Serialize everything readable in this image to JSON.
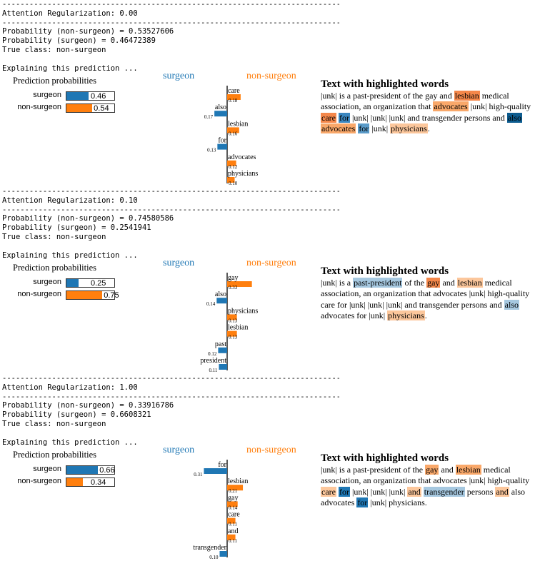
{
  "colors": {
    "surgeon": "#1f77b4",
    "non_surgeon": "#ff7f0e",
    "surgeon_dark": "#0d5c8f",
    "orange_light": "#fcc79c",
    "orange_mid": "#f9a86a",
    "blue_light": "#a6c8e0",
    "blue_mid": "#5a9bc9"
  },
  "sections": [
    {
      "reg_line": "Attention Regularization: 0.00",
      "prob_non": "Probability (non-surgeon) = 0.53527606",
      "prob_sur": "Probability (surgeon) = 0.46472389",
      "true_class": "True class: non-surgeon",
      "explaining": "Explaining this prediction ...",
      "pp_title": "Prediction probabilities",
      "pp": [
        {
          "label": "surgeon",
          "value": 0.46,
          "text": "0.46",
          "color": "#1f77b4"
        },
        {
          "label": "non-surgeon",
          "value": 0.54,
          "text": "0.54",
          "color": "#ff7f0e"
        }
      ],
      "neg_header": "surgeon",
      "pos_header": "non-surgeon",
      "text_title": "Text with highlighted words",
      "tokens": [
        {
          "t": "|unk| is a past-president of the gay and "
        },
        {
          "t": "lesbian",
          "bg": "#f4874a"
        },
        {
          "t": " medical association, an organization that "
        },
        {
          "t": "advocates",
          "bg": "#f9a86a"
        },
        {
          "t": " |unk| high-quality "
        },
        {
          "t": "care",
          "bg": "#f4874a"
        },
        {
          "t": " "
        },
        {
          "t": "for",
          "bg": "#3a86bf"
        },
        {
          "t": " |unk| |unk| |unk| and transgender persons and "
        },
        {
          "t": "also",
          "bg": "#0d5c8f",
          "fg": "#000"
        },
        {
          "t": " "
        },
        {
          "t": "advocates",
          "bg": "#f9a86a"
        },
        {
          "t": " "
        },
        {
          "t": "for",
          "bg": "#5a9bc9"
        },
        {
          "t": " |unk| "
        },
        {
          "t": "physicians",
          "bg": "#fcc79c"
        },
        {
          "t": "."
        }
      ]
    },
    {
      "reg_line": "Attention Regularization: 0.10",
      "prob_non": "Probability (non-surgeon) = 0.74580586",
      "prob_sur": "Probability (surgeon) = 0.2541941",
      "true_class": "True class: non-surgeon",
      "explaining": "Explaining this prediction ...",
      "pp_title": "Prediction probabilities",
      "pp": [
        {
          "label": "surgeon",
          "value": 0.25,
          "text": "0.25",
          "color": "#1f77b4"
        },
        {
          "label": "non-surgeon",
          "value": 0.75,
          "text": "0.75",
          "color": "#ff7f0e"
        }
      ],
      "neg_header": "surgeon",
      "pos_header": "non-surgeon",
      "text_title": "Text with highlighted words",
      "tokens": [
        {
          "t": "|unk| is a "
        },
        {
          "t": "past-president",
          "bg": "#a6c8e0"
        },
        {
          "t": " of the "
        },
        {
          "t": "gay",
          "bg": "#f4874a"
        },
        {
          "t": " and "
        },
        {
          "t": "lesbian",
          "bg": "#fcc79c"
        },
        {
          "t": " medical association, an organization that advocates |unk| high-quality care for |unk| |unk| |unk| and transgender persons and "
        },
        {
          "t": "also",
          "bg": "#a6c8e0"
        },
        {
          "t": " advocates for |unk| "
        },
        {
          "t": "physicians",
          "bg": "#fcc79c"
        },
        {
          "t": "."
        }
      ]
    },
    {
      "reg_line": "Attention Regularization: 1.00",
      "prob_non": "Probability (non-surgeon) = 0.33916786",
      "prob_sur": "Probability (surgeon) = 0.6608321",
      "true_class": "True class: non-surgeon",
      "explaining": "Explaining this prediction ...",
      "pp_title": "Prediction probabilities",
      "pp": [
        {
          "label": "surgeon",
          "value": 0.66,
          "text": "0.66",
          "color": "#1f77b4"
        },
        {
          "label": "non-surgeon",
          "value": 0.34,
          "text": "0.34",
          "color": "#ff7f0e"
        }
      ],
      "neg_header": "surgeon",
      "pos_header": "non-surgeon",
      "text_title": "Text with highlighted words",
      "tokens": [
        {
          "t": "|unk| is a past-president of the "
        },
        {
          "t": "gay",
          "bg": "#f9a86a"
        },
        {
          "t": " and "
        },
        {
          "t": "lesbian",
          "bg": "#f9a86a"
        },
        {
          "t": " medical association, an organization that advocates |unk| high-quality "
        },
        {
          "t": "care",
          "bg": "#fcc79c"
        },
        {
          "t": " "
        },
        {
          "t": "for",
          "bg": "#1f77b4"
        },
        {
          "t": " |unk| |unk| |unk| "
        },
        {
          "t": "and",
          "bg": "#fcc79c"
        },
        {
          "t": " "
        },
        {
          "t": "transgender",
          "bg": "#a6c8e0"
        },
        {
          "t": " persons "
        },
        {
          "t": "and",
          "bg": "#fcc79c"
        },
        {
          "t": " also advocates "
        },
        {
          "t": "for",
          "bg": "#1f77b4"
        },
        {
          "t": " |unk| physicians."
        }
      ]
    }
  ],
  "chart_data": [
    {
      "type": "bar",
      "orientation": "horizontal",
      "categories": [
        "care",
        "also",
        "lesbian",
        "for",
        "advocates",
        "physicians"
      ],
      "values": [
        0.18,
        -0.17,
        0.16,
        -0.13,
        0.12,
        0.1
      ],
      "labels": [
        "0.18",
        "0.17",
        "0.16",
        "0.13",
        "0.12",
        "0.10"
      ],
      "legend": [
        "surgeon",
        "non-surgeon"
      ]
    },
    {
      "type": "bar",
      "orientation": "horizontal",
      "categories": [
        "gay",
        "also",
        "physicians",
        "lesbian",
        "past",
        "president"
      ],
      "values": [
        0.33,
        -0.14,
        0.13,
        0.13,
        -0.12,
        -0.11
      ],
      "labels": [
        "0.33",
        "0.14",
        "0.13",
        "0.13",
        "0.12",
        "0.11"
      ],
      "legend": [
        "surgeon",
        "non-surgeon"
      ]
    },
    {
      "type": "bar",
      "orientation": "horizontal",
      "categories": [
        "for",
        "lesbian",
        "gay",
        "care",
        "and",
        "transgender"
      ],
      "values": [
        -0.31,
        0.21,
        0.14,
        0.11,
        0.11,
        -0.1
      ],
      "labels": [
        "0.31",
        "0.21",
        "0.14",
        "0.11",
        "0.11",
        "0.10"
      ],
      "legend": [
        "surgeon",
        "non-surgeon"
      ]
    }
  ]
}
